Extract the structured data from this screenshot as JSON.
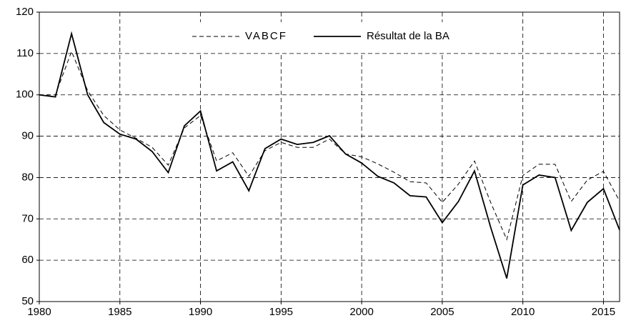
{
  "chart_data": {
    "type": "line",
    "x": [
      1980,
      1981,
      1982,
      1983,
      1984,
      1985,
      1986,
      1987,
      1988,
      1989,
      1990,
      1991,
      1992,
      1993,
      1994,
      1995,
      1996,
      1997,
      1998,
      1999,
      2000,
      2001,
      2002,
      2003,
      2004,
      2005,
      2006,
      2007,
      2008,
      2009,
      2010,
      2011,
      2012,
      2013,
      2014,
      2015,
      2016
    ],
    "series": [
      {
        "name": "VABCF",
        "color": "#000000",
        "dash": true,
        "values": [
          100,
          100,
          110.5,
          101,
          95,
          91.5,
          89.5,
          87.3,
          83,
          92,
          95,
          84,
          86,
          80.3,
          86.5,
          88.5,
          87.3,
          87.3,
          89.3,
          85.7,
          85,
          83.3,
          81.3,
          79,
          78.7,
          74,
          78.4,
          84,
          74,
          65,
          80.5,
          83.2,
          83.2,
          74.2,
          79.4,
          81.5,
          74.3
        ]
      },
      {
        "name": "Résultat de la BA",
        "color": "#000000",
        "dash": false,
        "values": [
          100,
          99.5,
          114.8,
          100,
          93.3,
          90.5,
          89.3,
          86.3,
          81.2,
          92.5,
          96.1,
          81.6,
          83.8,
          76.8,
          87,
          89.3,
          88,
          88.5,
          90.1,
          85.7,
          83.5,
          80.3,
          78.7,
          75.6,
          75.3,
          69.1,
          74.2,
          81.6,
          68,
          55.6,
          78.2,
          80.6,
          80,
          67.2,
          74,
          77.3,
          67.3
        ]
      }
    ],
    "xlim": [
      1980,
      2016
    ],
    "xticks": [
      1980,
      1985,
      1990,
      1995,
      2000,
      2005,
      2010,
      2015
    ],
    "ylim": [
      50,
      120
    ],
    "yticks": [
      50,
      60,
      70,
      80,
      90,
      100,
      110,
      120
    ],
    "grid": true,
    "legend": "upper center"
  }
}
